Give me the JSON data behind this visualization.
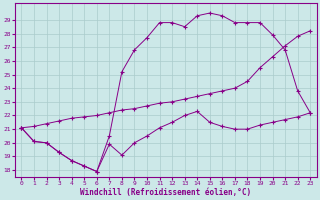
{
  "background_color": "#cce8e8",
  "grid_color": "#aacccc",
  "line_color": "#880088",
  "xlabel": "Windchill (Refroidissement éolien,°C)",
  "ylabel_ticks": [
    18,
    19,
    20,
    21,
    22,
    23,
    24,
    25,
    26,
    27,
    28,
    29
  ],
  "xlabel_ticks": [
    0,
    1,
    2,
    3,
    4,
    5,
    6,
    7,
    8,
    9,
    10,
    11,
    12,
    13,
    14,
    15,
    16,
    17,
    18,
    19,
    20,
    21,
    22,
    23
  ],
  "xlim": [
    -0.5,
    23.5
  ],
  "ylim": [
    17.5,
    30.2
  ],
  "line1_x": [
    0,
    1,
    2,
    3,
    4,
    5,
    6,
    7,
    8,
    9,
    10,
    11,
    12,
    13,
    14,
    15,
    16,
    17,
    18,
    19,
    20,
    21,
    22,
    23
  ],
  "line1_y": [
    21.1,
    20.1,
    20.0,
    19.3,
    18.7,
    18.3,
    17.9,
    19.9,
    19.1,
    20.0,
    20.5,
    21.1,
    21.5,
    22.0,
    22.3,
    21.5,
    21.2,
    21.0,
    21.0,
    21.3,
    21.5,
    21.7,
    21.9,
    22.2
  ],
  "line2_x": [
    0,
    1,
    2,
    3,
    4,
    5,
    6,
    7,
    8,
    9,
    10,
    11,
    12,
    13,
    14,
    15,
    16,
    17,
    18,
    19,
    20,
    21,
    22,
    23
  ],
  "line2_y": [
    21.1,
    20.1,
    20.0,
    19.3,
    18.7,
    18.3,
    17.9,
    20.5,
    25.2,
    26.8,
    27.7,
    28.8,
    28.8,
    28.5,
    29.3,
    29.5,
    29.3,
    28.8,
    28.8,
    28.8,
    27.9,
    26.8,
    23.8,
    22.2
  ],
  "line3_x": [
    0,
    1,
    2,
    3,
    4,
    5,
    6,
    7,
    8,
    9,
    10,
    11,
    12,
    13,
    14,
    15,
    16,
    17,
    18,
    19,
    20,
    21,
    22,
    23
  ],
  "line3_y": [
    21.1,
    21.2,
    21.4,
    21.6,
    21.8,
    21.9,
    22.0,
    22.2,
    22.4,
    22.5,
    22.7,
    22.9,
    23.0,
    23.2,
    23.4,
    23.6,
    23.8,
    24.0,
    24.5,
    25.5,
    26.3,
    27.1,
    27.8,
    28.2
  ]
}
